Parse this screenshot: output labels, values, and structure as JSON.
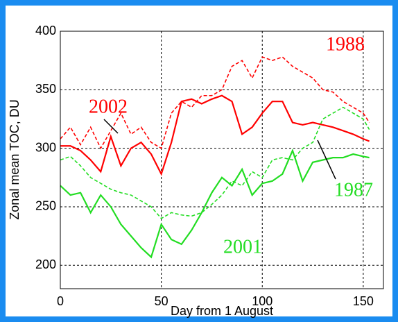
{
  "chart_data": {
    "type": "line",
    "x_label": "Day from 1 August",
    "y_label": "Zonal mean TOC, DU",
    "x": [
      0,
      5,
      10,
      15,
      20,
      25,
      30,
      35,
      40,
      45,
      50,
      55,
      60,
      65,
      70,
      75,
      80,
      85,
      90,
      95,
      100,
      105,
      110,
      115,
      120,
      125,
      130,
      135,
      140,
      145,
      150,
      153
    ],
    "series": [
      {
        "name": "1988",
        "color": "#ff0000",
        "dash": true,
        "values": [
          308,
          318,
          303,
          318,
          300,
          315,
          330,
          312,
          318,
          305,
          300,
          330,
          340,
          335,
          345,
          345,
          350,
          370,
          375,
          360,
          378,
          375,
          378,
          370,
          365,
          360,
          350,
          348,
          340,
          335,
          330,
          322
        ]
      },
      {
        "name": "2002",
        "color": "#ff0000",
        "dash": false,
        "values": [
          302,
          302,
          298,
          290,
          280,
          310,
          285,
          300,
          305,
          295,
          278,
          305,
          340,
          342,
          338,
          342,
          345,
          340,
          312,
          318,
          330,
          340,
          340,
          322,
          320,
          322,
          320,
          318,
          315,
          312,
          308,
          306
        ]
      },
      {
        "name": "1987",
        "color": "#22dd22",
        "dash": true,
        "values": [
          290,
          293,
          285,
          275,
          270,
          265,
          262,
          260,
          255,
          250,
          240,
          245,
          243,
          242,
          245,
          252,
          260,
          272,
          268,
          280,
          275,
          290,
          292,
          290,
          300,
          305,
          325,
          330,
          335,
          330,
          325,
          316
        ]
      },
      {
        "name": "2001",
        "color": "#22dd22",
        "dash": false,
        "values": [
          268,
          260,
          262,
          245,
          260,
          250,
          235,
          225,
          215,
          207,
          235,
          222,
          218,
          230,
          245,
          262,
          275,
          268,
          282,
          260,
          270,
          272,
          278,
          298,
          272,
          288,
          290,
          292,
          292,
          295,
          293,
          292
        ]
      }
    ],
    "xlim": [
      0,
      160
    ],
    "ylim": [
      180,
      400
    ],
    "xticks": [
      0,
      50,
      100,
      150
    ],
    "yticks": [
      200,
      250,
      300,
      350,
      400
    ],
    "grid": true
  }
}
